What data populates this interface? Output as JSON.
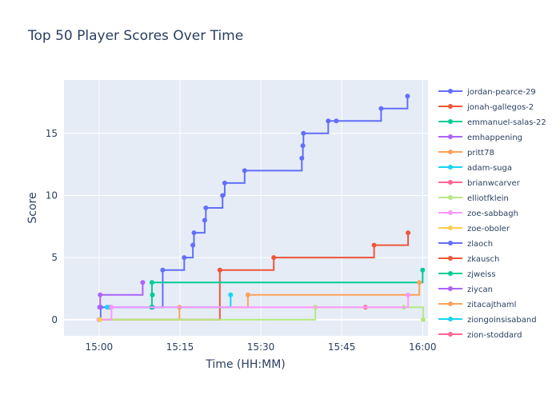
{
  "chart_data": {
    "type": "line",
    "line_shape": "step-after",
    "markers": true,
    "title": "Top 50 Player Scores Over Time",
    "xlabel": "Time (HH:MM)",
    "ylabel": "Score",
    "x_axis": {
      "unit": "minutes after 15:00",
      "range": [
        -6.5,
        61
      ],
      "tick_values": [
        0,
        15,
        30,
        45,
        60
      ],
      "tick_labels": [
        "15:00",
        "15:15",
        "15:30",
        "15:45",
        "16:00"
      ]
    },
    "y_axis": {
      "range": [
        -1.3,
        19.3
      ],
      "tick_values": [
        0,
        5,
        10,
        15
      ],
      "tick_labels": [
        "0",
        "5",
        "10",
        "15"
      ]
    },
    "grid": true,
    "legend_position": "right",
    "plot_background": "#E5ECF6",
    "series": [
      {
        "name": "jordan-pearce-29",
        "color": "#636EFA",
        "x": [
          0,
          0.3,
          2.1,
          9.9,
          11.8,
          15.8,
          17.4,
          17.6,
          19.6,
          19.8,
          22.9,
          23.3,
          27,
          37.6,
          37.8,
          37.9,
          42.5,
          44,
          52.3,
          57.2
        ],
        "y": [
          0,
          1,
          1,
          1,
          4,
          5,
          6,
          7,
          8,
          9,
          10,
          11,
          12,
          13,
          14,
          15,
          16,
          16,
          17,
          18
        ]
      },
      {
        "name": "jonah-gallegos-2",
        "color": "#EF553B",
        "x": [
          0,
          22.4,
          32.4,
          51,
          57.3
        ],
        "y": [
          0,
          4,
          5,
          6,
          7
        ]
      },
      {
        "name": "emmanuel-salas-22",
        "color": "#00CC96",
        "x": [
          9.7,
          9.8,
          60
        ],
        "y": [
          1,
          3,
          4
        ]
      },
      {
        "name": "emhappening",
        "color": "#AB63FA",
        "x": [
          0.1,
          0.2,
          8.1
        ],
        "y": [
          1,
          2,
          3
        ]
      },
      {
        "name": "pritt78",
        "color": "#FFA15A",
        "x": [
          0,
          14.9,
          27.6,
          59.4
        ],
        "y": [
          0,
          1,
          2,
          3
        ]
      },
      {
        "name": "adam-suga",
        "color": "#19D3F3",
        "x": [
          1.5,
          24.4
        ],
        "y": [
          1,
          2
        ]
      },
      {
        "name": "brianwcarver",
        "color": "#FF6692",
        "x": [
          49.4
        ],
        "y": [
          1
        ]
      },
      {
        "name": "elliotfklein",
        "color": "#B6E880",
        "x": [
          0,
          40.1,
          56.5,
          60.1
        ],
        "y": [
          0,
          1,
          1,
          0
        ]
      },
      {
        "name": "zoe-sabbagh",
        "color": "#FF97FF",
        "x": [
          0,
          2.3,
          57.3
        ],
        "y": [
          0,
          1,
          2
        ]
      },
      {
        "name": "zoe-oboler",
        "color": "#FECB52",
        "x": [
          0.2
        ],
        "y": [
          0
        ]
      },
      {
        "name": "zlaoch",
        "color": "#636EFA",
        "x": [],
        "y": []
      },
      {
        "name": "zkausch",
        "color": "#EF553B",
        "x": [],
        "y": []
      },
      {
        "name": "zjweiss",
        "color": "#00CC96",
        "x": [
          9.9
        ],
        "y": [
          2
        ]
      },
      {
        "name": "ziycan",
        "color": "#AB63FA",
        "x": [],
        "y": []
      },
      {
        "name": "zitacajthaml",
        "color": "#FFA15A",
        "x": [],
        "y": []
      },
      {
        "name": "ziongoinsisaband",
        "color": "#19D3F3",
        "x": [],
        "y": []
      },
      {
        "name": "zion-stoddard",
        "color": "#FF6692",
        "x": [],
        "y": []
      }
    ]
  }
}
